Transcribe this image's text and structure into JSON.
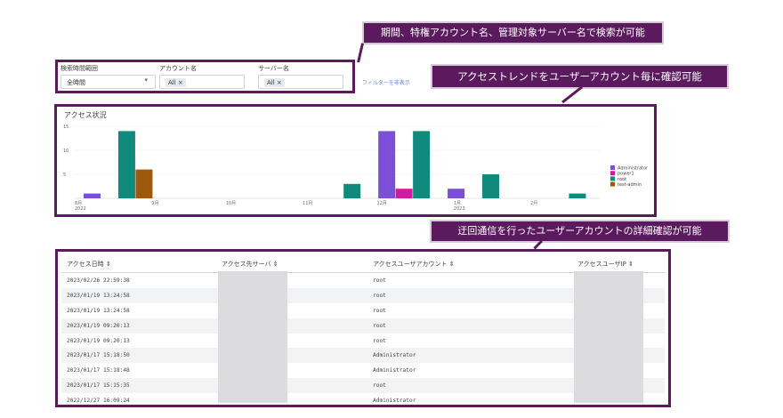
{
  "callouts": {
    "search": "期間、特権アカウント名、管理対象サーバー名で検索が可能",
    "trend": "アクセストレンドをユーザーアカウント毎に確認可能",
    "detail": "迂回通信を行ったユーザーアカウントの詳細確認が可能"
  },
  "filters": {
    "period_label": "検索時間範囲",
    "period_value": "全時間",
    "account_label": "アカウント名",
    "account_chip": "All ×",
    "server_label": "サーバー名",
    "server_chip": "All ×",
    "hide_link": "フィルターを非表示"
  },
  "chart_data": {
    "type": "bar",
    "title": "アクセス状況",
    "ylim": [
      0,
      15
    ],
    "yticks": [
      "15",
      "10",
      "5"
    ],
    "xticks": [
      {
        "label": "8月",
        "sub": "2022"
      },
      {
        "label": "9月",
        "sub": ""
      },
      {
        "label": "10月",
        "sub": ""
      },
      {
        "label": "11月",
        "sub": ""
      },
      {
        "label": "12月",
        "sub": ""
      },
      {
        "label": "1月",
        "sub": "2023"
      },
      {
        "label": "2月",
        "sub": ""
      }
    ],
    "series": [
      {
        "name": "Administrator",
        "color": "#7b4fd6"
      },
      {
        "name": "power1",
        "color": "#d41a9c"
      },
      {
        "name": "root",
        "color": "#118a7e"
      },
      {
        "name": "test-admin",
        "color": "#9b5a0c"
      }
    ],
    "bars": [
      {
        "x": "2022-08-08",
        "series": "Administrator",
        "value": 1
      },
      {
        "x": "2022-08-22",
        "series": "root",
        "value": 14
      },
      {
        "x": "2022-08-29",
        "series": "test-admin",
        "value": 6
      },
      {
        "x": "2022-11-21",
        "series": "root",
        "value": 3
      },
      {
        "x": "2022-12-05",
        "series": "Administrator",
        "value": 14
      },
      {
        "x": "2022-12-12",
        "series": "power1",
        "value": 2
      },
      {
        "x": "2022-12-19",
        "series": "root",
        "value": 14
      },
      {
        "x": "2023-01-02",
        "series": "Administrator",
        "value": 2
      },
      {
        "x": "2023-01-16",
        "series": "root",
        "value": 5
      },
      {
        "x": "2023-02-20",
        "series": "root",
        "value": 1
      }
    ],
    "legend_position": "right",
    "grid": true
  },
  "table": {
    "headers": [
      "アクセス日時 ⇕",
      "アクセス先サーバ ⇕",
      "アクセスユーザアカウント ⇕",
      "アクセスユーザIP ⇕"
    ],
    "rows": [
      [
        "2023/02/26 22:59:38",
        "root"
      ],
      [
        "2023/01/19 13:24:58",
        "root"
      ],
      [
        "2023/01/19 13:24:58",
        "root"
      ],
      [
        "2023/01/19 09:20:13",
        "root"
      ],
      [
        "2023/01/19 09:20:13",
        "root"
      ],
      [
        "2023/01/17 15:18:50",
        "Administrator"
      ],
      [
        "2023/01/17 15:18:48",
        "Administrator"
      ],
      [
        "2023/01/17 15:15:35",
        "root"
      ],
      [
        "2022/12/27 16:09:24",
        "Administrator"
      ]
    ]
  }
}
